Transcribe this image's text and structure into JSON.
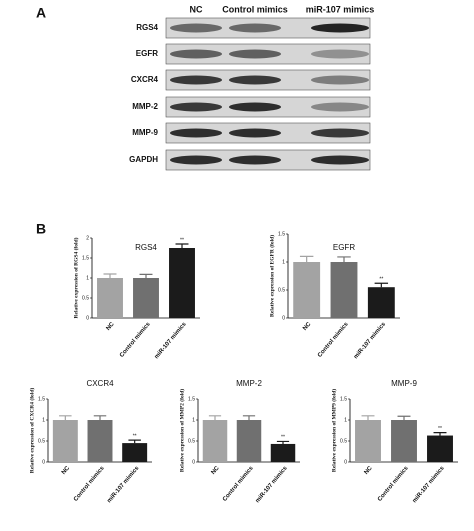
{
  "blot": {
    "panel": "A",
    "columns": [
      "NC",
      "Control mimics",
      "miR-107 mimics"
    ],
    "rows": [
      "RGS4",
      "EGFR",
      "CXCR4",
      "MMP-2",
      "MMP-9",
      "GAPDH"
    ]
  },
  "panel_b": "B",
  "chart_data": [
    {
      "type": "bar",
      "title": "RGS4",
      "ylabel": "Relative expression of RGS4 (fold)",
      "categories": [
        "NC",
        "Control mimics",
        "miR-107 mimics"
      ],
      "values": [
        1.0,
        1.0,
        1.75
      ],
      "errors": [
        0.1,
        0.09,
        0.1
      ],
      "colors": [
        "#a3a3a3",
        "#707070",
        "#1b1b1b"
      ],
      "ylim": [
        0,
        2
      ],
      "yticks": [
        0,
        0.5,
        1,
        1.5,
        2
      ],
      "annotations": [
        {
          "text": "**",
          "category": "miR-107 mimics"
        }
      ]
    },
    {
      "type": "bar",
      "title": "EGFR",
      "ylabel": "Relative expression of EGFR (fold)",
      "categories": [
        "NC",
        "Control mimics",
        "miR-107 mimics"
      ],
      "values": [
        1.0,
        1.0,
        0.55
      ],
      "errors": [
        0.1,
        0.09,
        0.07
      ],
      "colors": [
        "#a3a3a3",
        "#707070",
        "#1b1b1b"
      ],
      "ylim": [
        0,
        1.5
      ],
      "yticks": [
        0,
        0.5,
        1,
        1.5
      ],
      "annotations": [
        {
          "text": "**",
          "category": "miR-107 mimics"
        }
      ]
    },
    {
      "type": "bar",
      "title": "CXCR4",
      "ylabel": "Relative expression of CXCR4 (fold)",
      "categories": [
        "NC",
        "Control mimics",
        "miR-107 mimics"
      ],
      "values": [
        1.0,
        1.0,
        0.45
      ],
      "errors": [
        0.1,
        0.1,
        0.07
      ],
      "colors": [
        "#a3a3a3",
        "#707070",
        "#1b1b1b"
      ],
      "ylim": [
        0,
        1.5
      ],
      "yticks": [
        0,
        0.5,
        1,
        1.5
      ],
      "annotations": [
        {
          "text": "**",
          "category": "miR-107 mimics"
        }
      ]
    },
    {
      "type": "bar",
      "title": "MMP-2",
      "ylabel": "Relative expression of MMP2 (fold)",
      "categories": [
        "NC",
        "Control mimics",
        "miR-107 mimics"
      ],
      "values": [
        1.0,
        1.0,
        0.43
      ],
      "errors": [
        0.1,
        0.1,
        0.06
      ],
      "colors": [
        "#a3a3a3",
        "#707070",
        "#1b1b1b"
      ],
      "ylim": [
        0,
        1.5
      ],
      "yticks": [
        0,
        0.5,
        1,
        1.5
      ],
      "annotations": [
        {
          "text": "**",
          "category": "miR-107 mimics"
        }
      ]
    },
    {
      "type": "bar",
      "title": "MMP-9",
      "ylabel": "Relative expression of MMP9 (fold)",
      "categories": [
        "NC",
        "Control mimics",
        "miR-107 mimics"
      ],
      "values": [
        1.0,
        1.0,
        0.63
      ],
      "errors": [
        0.1,
        0.09,
        0.07
      ],
      "colors": [
        "#a3a3a3",
        "#707070",
        "#1b1b1b"
      ],
      "ylim": [
        0,
        1.5
      ],
      "yticks": [
        0,
        0.5,
        1,
        1.5
      ],
      "annotations": [
        {
          "text": "**",
          "category": "miR-107 mimics"
        }
      ]
    }
  ]
}
